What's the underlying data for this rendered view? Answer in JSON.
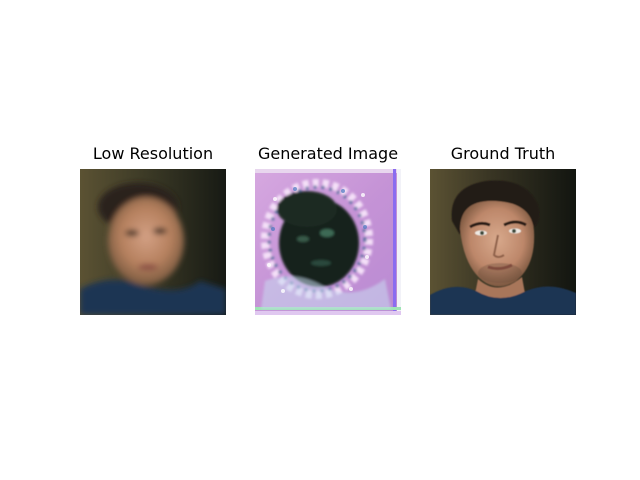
{
  "figure": {
    "panels": [
      {
        "title": "Low Resolution"
      },
      {
        "title": "Generated Image"
      },
      {
        "title": "Ground Truth"
      }
    ]
  },
  "colors": {
    "background": "#ffffff",
    "lowres_bg_left": "#5a5030",
    "lowres_bg_right": "#1a1e16",
    "generated_bg": "#c79ad8",
    "generated_face": "#16231a",
    "shirt": "#1f3550",
    "skin": "#c48c6c",
    "hair": "#2a2018"
  }
}
